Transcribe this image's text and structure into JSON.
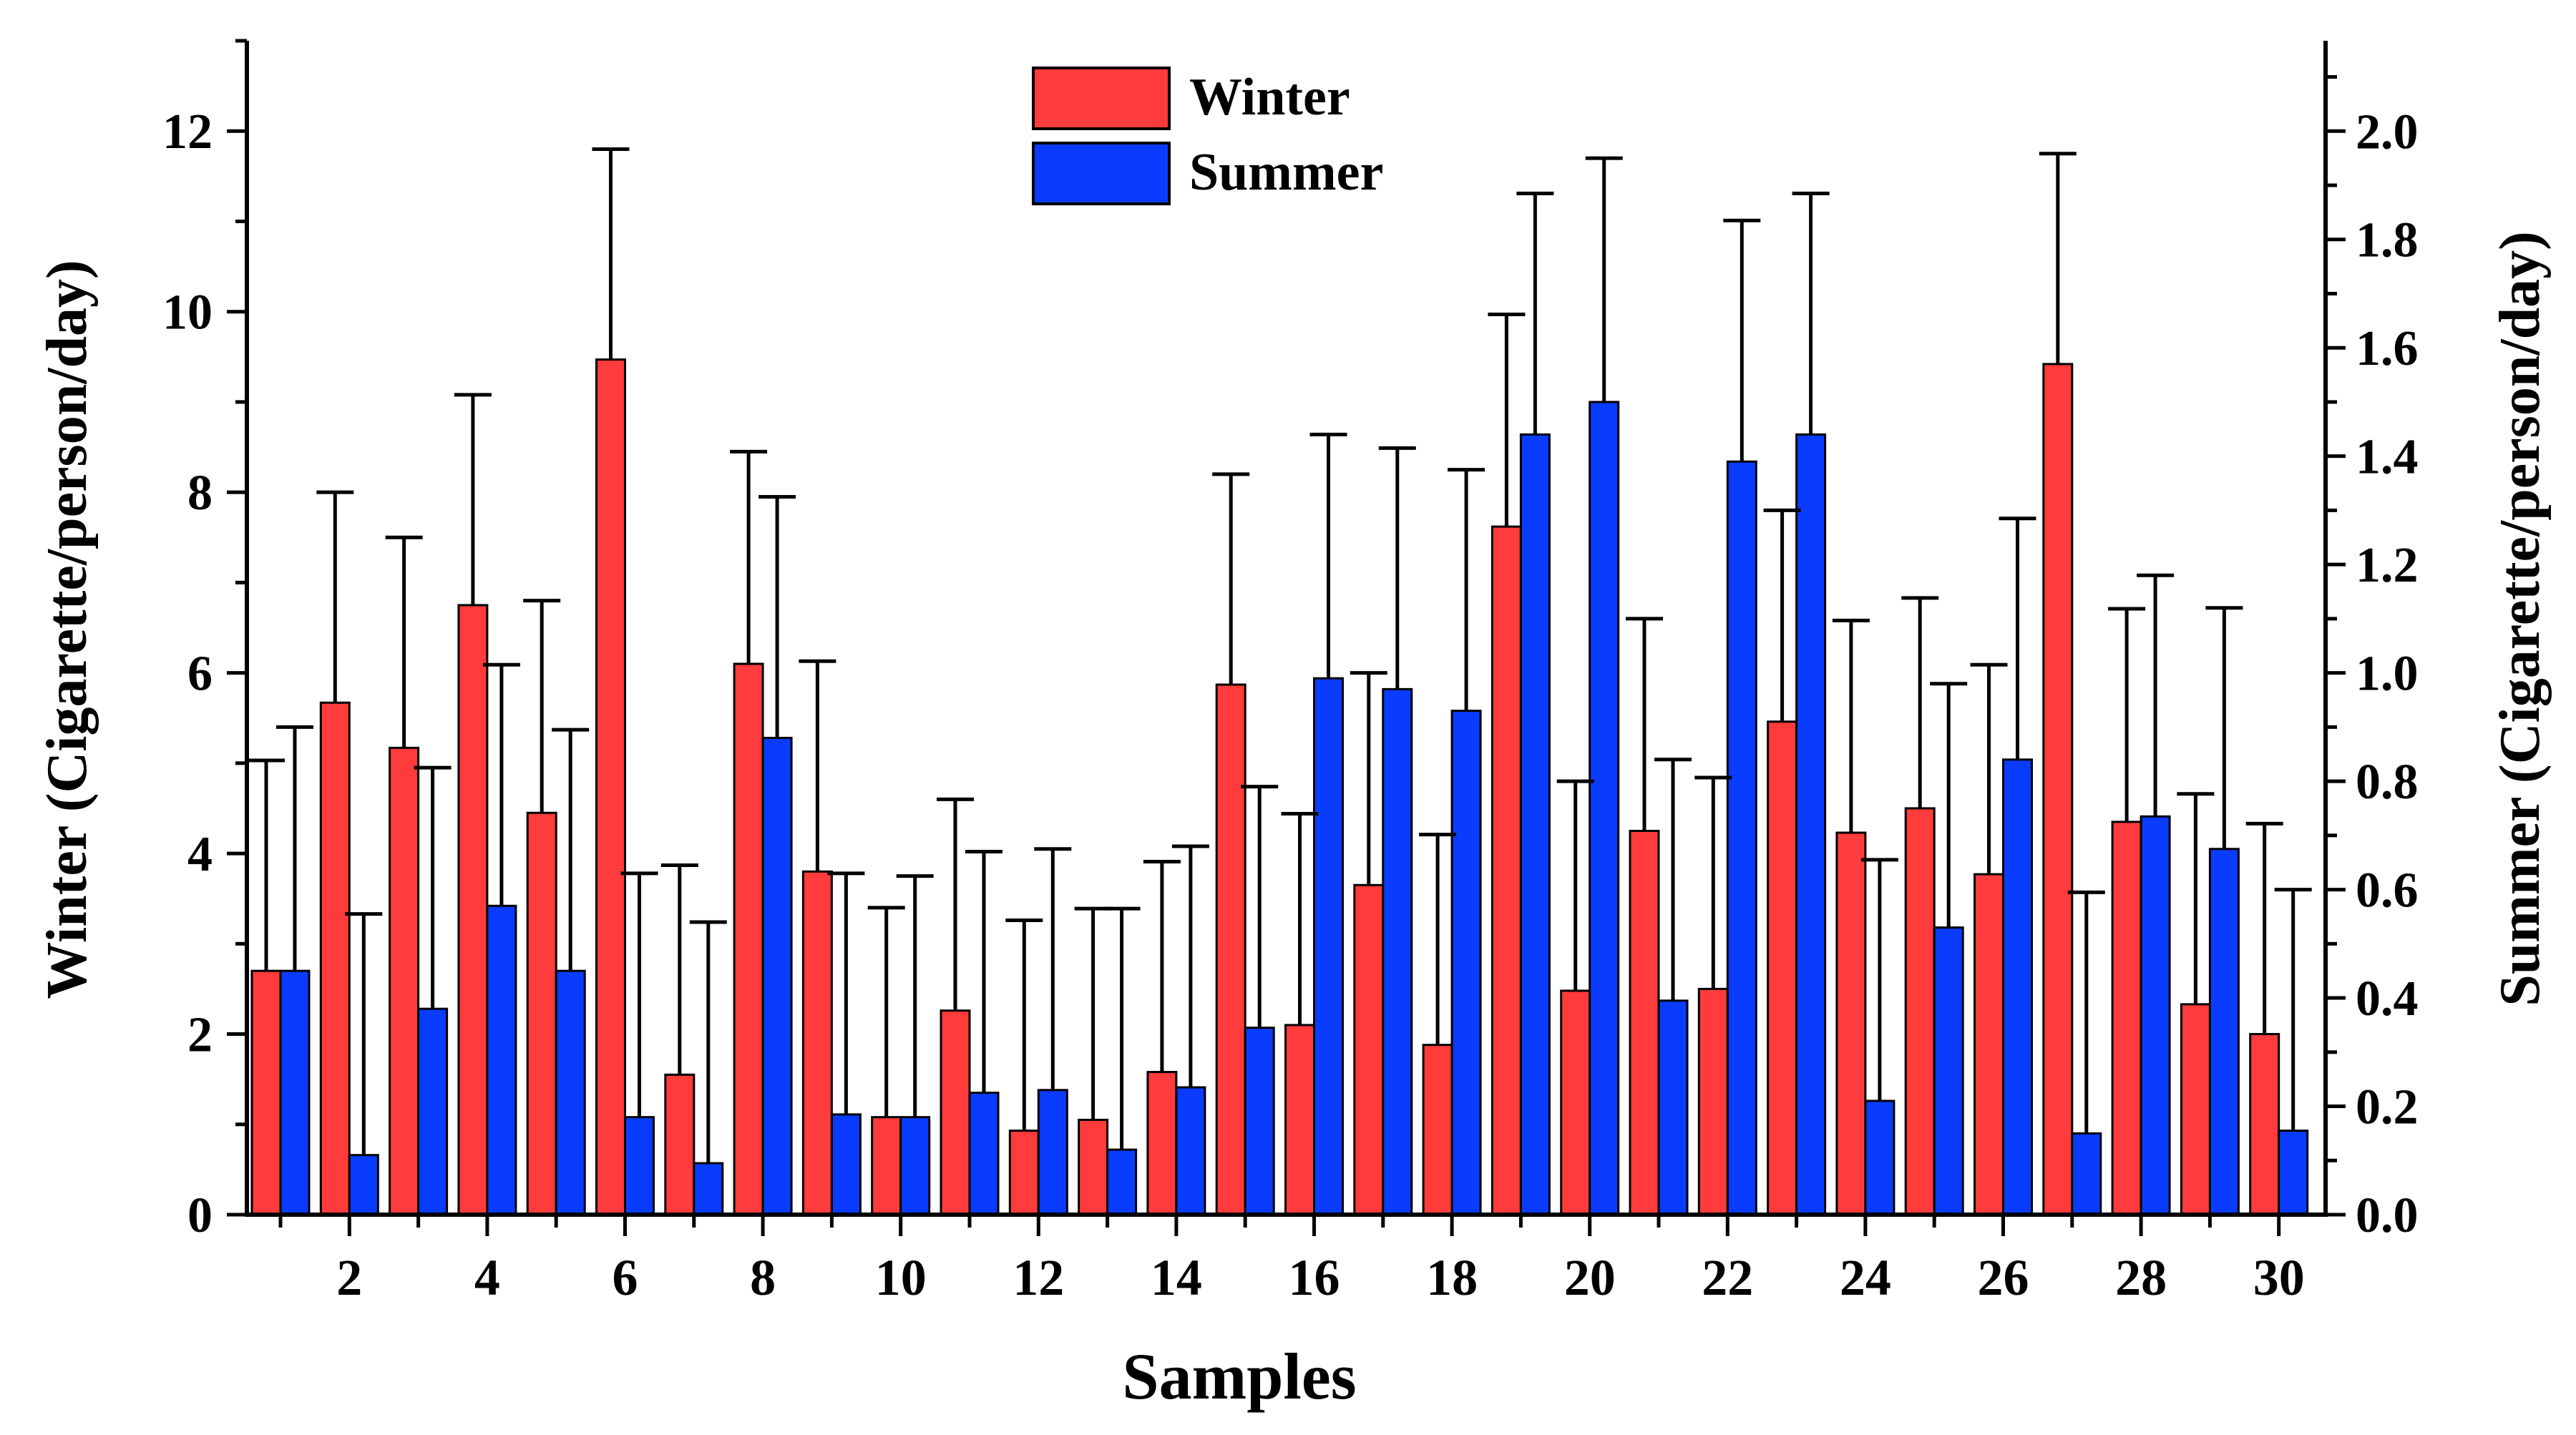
{
  "chart_data": {
    "type": "bar",
    "xlabel": "Samples",
    "ylabel_left": "Winter (Cigarette/person/day)",
    "ylabel_right": "Summer (Cigarette/person/day)",
    "ylim_left": [
      0,
      13
    ],
    "ylim_right": [
      0,
      2.1667
    ],
    "yticks_left": [
      0,
      2,
      4,
      6,
      8,
      10,
      12
    ],
    "yticks_right": [
      0.0,
      0.2,
      0.4,
      0.6,
      0.8,
      1.0,
      1.2,
      1.4,
      1.6,
      1.8,
      2.0
    ],
    "xtick_labels": [
      2,
      4,
      6,
      8,
      10,
      12,
      14,
      16,
      18,
      20,
      22,
      24,
      26,
      28,
      30
    ],
    "legend_position": "top-center",
    "categories": [
      1,
      2,
      3,
      4,
      5,
      6,
      7,
      8,
      9,
      10,
      11,
      12,
      13,
      14,
      15,
      16,
      17,
      18,
      19,
      20,
      21,
      22,
      23,
      24,
      25,
      26,
      27,
      28,
      29,
      30
    ],
    "series": [
      {
        "name": "Winter",
        "axis": "left",
        "color": "#ff3b3b",
        "values": [
          2.7,
          5.67,
          5.17,
          6.75,
          4.45,
          9.47,
          1.55,
          6.1,
          3.8,
          1.08,
          2.26,
          0.93,
          1.05,
          1.58,
          5.87,
          2.1,
          3.65,
          1.88,
          7.62,
          2.48,
          4.25,
          2.5,
          5.46,
          4.23,
          4.5,
          3.77,
          9.42,
          4.35,
          2.33,
          2.0
        ],
        "error": [
          2.33,
          2.33,
          2.33,
          2.33,
          2.35,
          2.33,
          2.32,
          2.35,
          2.33,
          2.32,
          2.34,
          2.33,
          2.34,
          2.33,
          2.33,
          2.34,
          2.35,
          2.33,
          2.35,
          2.32,
          2.35,
          2.34,
          2.34,
          2.35,
          2.33,
          2.32,
          2.33,
          2.36,
          2.33,
          2.33
        ]
      },
      {
        "name": "Summer",
        "axis": "right",
        "color": "#0a3cff",
        "values": [
          0.45,
          0.11,
          0.38,
          0.57,
          0.45,
          0.18,
          0.095,
          0.88,
          0.185,
          0.18,
          0.225,
          0.23,
          0.12,
          0.235,
          0.345,
          0.99,
          0.97,
          0.93,
          1.44,
          1.5,
          0.395,
          1.39,
          1.44,
          0.21,
          0.53,
          0.84,
          0.15,
          0.735,
          0.675,
          0.155
        ],
        "error": [
          0.45,
          0.445,
          0.445,
          0.445,
          0.445,
          0.45,
          0.445,
          0.445,
          0.445,
          0.445,
          0.445,
          0.445,
          0.445,
          0.445,
          0.445,
          0.45,
          0.445,
          0.445,
          0.445,
          0.45,
          0.445,
          0.445,
          0.445,
          0.445,
          0.45,
          0.445,
          0.445,
          0.445,
          0.445,
          0.445
        ]
      }
    ]
  }
}
